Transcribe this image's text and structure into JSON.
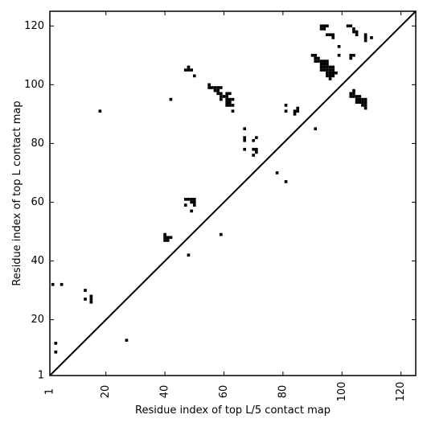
{
  "chart_data": {
    "type": "scatter",
    "xlabel": "Residue index of top L/5 contact map",
    "ylabel": "Residue index of top L contact map",
    "xlim": [
      1,
      125
    ],
    "ylim": [
      1,
      125
    ],
    "x_ticks": [
      1,
      20,
      40,
      60,
      80,
      100,
      120
    ],
    "y_ticks": [
      1,
      20,
      40,
      60,
      80,
      100,
      120
    ],
    "diagonal": {
      "from": [
        1,
        1
      ],
      "to": [
        125,
        125
      ]
    },
    "marker": "filled-square",
    "marker_color": "#000000",
    "points": [
      [
        2,
        32
      ],
      [
        5,
        32
      ],
      [
        3,
        12
      ],
      [
        3,
        9
      ],
      [
        13,
        30
      ],
      [
        13,
        27
      ],
      [
        15,
        28
      ],
      [
        15,
        27
      ],
      [
        15,
        26
      ],
      [
        18,
        91
      ],
      [
        27,
        13
      ],
      [
        40,
        49
      ],
      [
        40,
        48
      ],
      [
        40,
        47
      ],
      [
        41,
        47
      ],
      [
        41,
        48
      ],
      [
        42,
        48
      ],
      [
        42,
        95
      ],
      [
        47,
        61
      ],
      [
        48,
        61
      ],
      [
        49,
        61
      ],
      [
        49,
        60
      ],
      [
        50,
        61
      ],
      [
        50,
        60
      ],
      [
        50,
        59
      ],
      [
        47,
        59
      ],
      [
        48,
        42
      ],
      [
        49,
        57
      ],
      [
        47,
        105
      ],
      [
        48,
        105
      ],
      [
        49,
        105
      ],
      [
        48,
        106
      ],
      [
        50,
        103
      ],
      [
        55,
        100
      ],
      [
        55,
        99
      ],
      [
        56,
        99
      ],
      [
        57,
        99
      ],
      [
        58,
        99
      ],
      [
        59,
        99
      ],
      [
        57,
        98
      ],
      [
        58,
        98
      ],
      [
        58,
        97
      ],
      [
        59,
        97
      ],
      [
        59,
        96
      ],
      [
        59,
        95
      ],
      [
        60,
        96
      ],
      [
        61,
        97
      ],
      [
        62,
        97
      ],
      [
        61,
        96
      ],
      [
        61,
        95
      ],
      [
        62,
        95
      ],
      [
        63,
        95
      ],
      [
        61,
        94
      ],
      [
        62,
        94
      ],
      [
        61,
        93
      ],
      [
        62,
        93
      ],
      [
        63,
        93
      ],
      [
        63,
        91
      ],
      [
        59,
        49
      ],
      [
        67,
        85
      ],
      [
        67,
        82
      ],
      [
        67,
        81
      ],
      [
        67,
        78
      ],
      [
        70,
        81
      ],
      [
        71,
        82
      ],
      [
        70,
        78
      ],
      [
        71,
        78
      ],
      [
        71,
        77
      ],
      [
        70,
        76
      ],
      [
        78,
        70
      ],
      [
        81,
        67
      ],
      [
        81,
        93
      ],
      [
        81,
        91
      ],
      [
        84,
        91
      ],
      [
        84,
        90
      ],
      [
        85,
        92
      ],
      [
        85,
        91
      ],
      [
        91,
        85
      ],
      [
        90,
        110
      ],
      [
        91,
        110
      ],
      [
        91,
        109
      ],
      [
        92,
        108
      ],
      [
        93,
        108
      ],
      [
        94,
        108
      ],
      [
        95,
        108
      ],
      [
        91,
        108
      ],
      [
        92,
        109
      ],
      [
        93,
        107
      ],
      [
        94,
        107
      ],
      [
        95,
        107
      ],
      [
        93,
        106
      ],
      [
        94,
        106
      ],
      [
        95,
        106
      ],
      [
        96,
        106
      ],
      [
        97,
        106
      ],
      [
        93,
        105
      ],
      [
        94,
        105
      ],
      [
        95,
        105
      ],
      [
        96,
        105
      ],
      [
        97,
        105
      ],
      [
        95,
        104
      ],
      [
        96,
        104
      ],
      [
        97,
        104
      ],
      [
        98,
        104
      ],
      [
        95,
        103
      ],
      [
        96,
        103
      ],
      [
        97,
        103
      ],
      [
        96,
        102
      ],
      [
        93,
        120
      ],
      [
        94,
        120
      ],
      [
        95,
        120
      ],
      [
        93,
        119
      ],
      [
        94,
        119
      ],
      [
        95,
        117
      ],
      [
        96,
        117
      ],
      [
        97,
        117
      ],
      [
        97,
        116
      ],
      [
        99,
        113
      ],
      [
        99,
        110
      ],
      [
        102,
        120
      ],
      [
        103,
        120
      ],
      [
        104,
        119
      ],
      [
        104,
        118
      ],
      [
        105,
        118
      ],
      [
        105,
        117
      ],
      [
        103,
        110
      ],
      [
        104,
        110
      ],
      [
        103,
        109
      ],
      [
        108,
        117
      ],
      [
        108,
        116
      ],
      [
        108,
        115
      ],
      [
        110,
        116
      ],
      [
        103,
        97
      ],
      [
        104,
        97
      ],
      [
        104,
        98
      ],
      [
        103,
        96
      ],
      [
        104,
        96
      ],
      [
        105,
        96
      ],
      [
        106,
        96
      ],
      [
        105,
        95
      ],
      [
        106,
        95
      ],
      [
        107,
        95
      ],
      [
        108,
        95
      ],
      [
        105,
        94
      ],
      [
        106,
        94
      ],
      [
        107,
        94
      ],
      [
        108,
        94
      ],
      [
        107,
        93
      ],
      [
        108,
        93
      ],
      [
        108,
        92
      ]
    ]
  }
}
